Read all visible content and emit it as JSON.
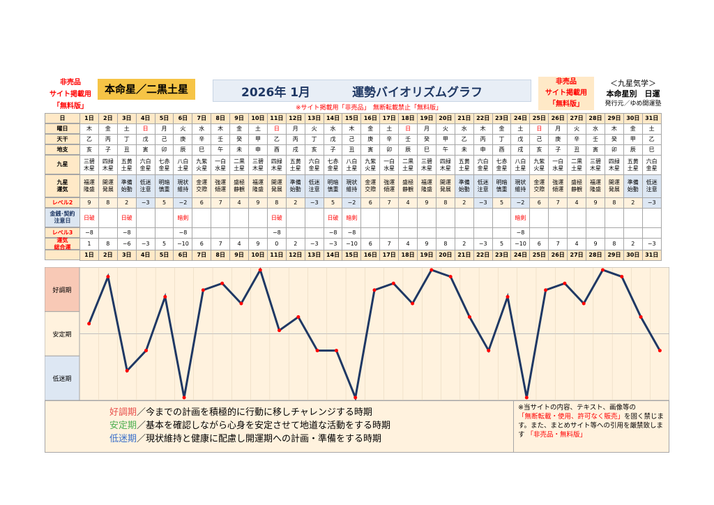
{
  "header": {
    "nonsale_left": [
      "非売品",
      "サイト掲載用",
      "「無料版」"
    ],
    "honmei": "本命星／二黒土星",
    "year_month": "2026年 1月",
    "title": "運勢バイオリズムグラフ",
    "nonsale_right": [
      "非売品",
      "サイト掲載用",
      "「無料版」"
    ],
    "kyusei": [
      "＜九星気学＞",
      "本命星別　日運",
      "発行元／ゆめ開運塾"
    ],
    "red_notice": "※サイト掲載用「非売品」　無断転載禁止「無料版」"
  },
  "row_labels": {
    "day": "日",
    "weekday": "曜日",
    "tenkan": "天干",
    "chishi": "地支",
    "kyusei": "九星",
    "kyusei_unki": "九星\n運気",
    "level2": "レベル2",
    "kinsen": "金銭･契約\n注意日",
    "level3": "レベル3",
    "unki_total": "運気\n総合運"
  },
  "days": [
    "1日",
    "2日",
    "3日",
    "4日",
    "5日",
    "6日",
    "7日",
    "8日",
    "9日",
    "10日",
    "11日",
    "12日",
    "13日",
    "14日",
    "15日",
    "16日",
    "17日",
    "18日",
    "19日",
    "20日",
    "21日",
    "22日",
    "23日",
    "24日",
    "25日",
    "26日",
    "27日",
    "28日",
    "29日",
    "30日",
    "31日"
  ],
  "weekday": [
    "木",
    "金",
    "土",
    "日",
    "月",
    "火",
    "水",
    "木",
    "金",
    "土",
    "日",
    "月",
    "火",
    "水",
    "木",
    "金",
    "土",
    "日",
    "月",
    "火",
    "水",
    "木",
    "金",
    "土",
    "日",
    "月",
    "火",
    "水",
    "木",
    "金",
    "土"
  ],
  "weekday_red": [
    3,
    10,
    17,
    24
  ],
  "tenkan": [
    "乙",
    "丙",
    "丁",
    "戊",
    "己",
    "庚",
    "辛",
    "壬",
    "癸",
    "甲",
    "乙",
    "丙",
    "丁",
    "戊",
    "己",
    "庚",
    "辛",
    "壬",
    "癸",
    "甲",
    "乙",
    "丙",
    "丁",
    "戊",
    "己",
    "庚",
    "辛",
    "壬",
    "癸",
    "甲",
    "乙"
  ],
  "chishi": [
    "亥",
    "子",
    "丑",
    "寅",
    "卯",
    "辰",
    "巳",
    "午",
    "未",
    "申",
    "酉",
    "戌",
    "亥",
    "子",
    "丑",
    "寅",
    "卯",
    "辰",
    "巳",
    "午",
    "未",
    "申",
    "酉",
    "戌",
    "亥",
    "子",
    "丑",
    "寅",
    "卯",
    "辰",
    "巳"
  ],
  "kyusei": [
    [
      "三碧",
      "木星"
    ],
    [
      "四緑",
      "木星"
    ],
    [
      "五黄",
      "土星"
    ],
    [
      "六白",
      "金星"
    ],
    [
      "七赤",
      "金星"
    ],
    [
      "八白",
      "土星"
    ],
    [
      "九紫",
      "火星"
    ],
    [
      "一白",
      "水星"
    ],
    [
      "二黒",
      "土星"
    ],
    [
      "三碧",
      "木星"
    ],
    [
      "四緑",
      "木星"
    ],
    [
      "五黄",
      "土星"
    ],
    [
      "六白",
      "金星"
    ],
    [
      "七赤",
      "金星"
    ],
    [
      "八白",
      "土星"
    ],
    [
      "九紫",
      "火星"
    ],
    [
      "一白",
      "水星"
    ],
    [
      "二黒",
      "土星"
    ],
    [
      "三碧",
      "木星"
    ],
    [
      "四緑",
      "木星"
    ],
    [
      "五黄",
      "土星"
    ],
    [
      "六白",
      "金星"
    ],
    [
      "七赤",
      "金星"
    ],
    [
      "八白",
      "土星"
    ],
    [
      "九紫",
      "火星"
    ],
    [
      "一白",
      "水星"
    ],
    [
      "二黒",
      "土星"
    ],
    [
      "三碧",
      "木星"
    ],
    [
      "四緑",
      "木星"
    ],
    [
      "五黄",
      "土星"
    ],
    [
      "六白",
      "金星"
    ]
  ],
  "unki": [
    [
      "福運",
      "隆盛"
    ],
    [
      "開運",
      "発展"
    ],
    [
      "準備",
      "始動"
    ],
    [
      "低迷",
      "注意"
    ],
    [
      "明暗",
      "慎重"
    ],
    [
      "現状",
      "維持"
    ],
    [
      "金運",
      "交際"
    ],
    [
      "強運",
      "傾運"
    ],
    [
      "盛極",
      "静観"
    ],
    [
      "福運",
      "隆盛"
    ],
    [
      "開運",
      "発展"
    ],
    [
      "準備",
      "始動"
    ],
    [
      "低迷",
      "注意"
    ],
    [
      "明暗",
      "慎重"
    ],
    [
      "現状",
      "維持"
    ],
    [
      "金運",
      "交際"
    ],
    [
      "強運",
      "傾運"
    ],
    [
      "盛極",
      "静観"
    ],
    [
      "福運",
      "隆盛"
    ],
    [
      "開運",
      "発展"
    ],
    [
      "準備",
      "始動"
    ],
    [
      "低迷",
      "注意"
    ],
    [
      "明暗",
      "慎重"
    ],
    [
      "現状",
      "維持"
    ],
    [
      "金運",
      "交際"
    ],
    [
      "強運",
      "傾運"
    ],
    [
      "盛極",
      "静観"
    ],
    [
      "福運",
      "隆盛"
    ],
    [
      "開運",
      "発展"
    ],
    [
      "準備",
      "始動"
    ],
    [
      "低迷",
      "注意"
    ]
  ],
  "level2": [
    "9",
    "8",
    "2",
    "−3",
    "5",
    "−2",
    "6",
    "7",
    "4",
    "9",
    "8",
    "2",
    "−3",
    "5",
    "−2",
    "6",
    "7",
    "4",
    "9",
    "8",
    "2",
    "−3",
    "5",
    "−2",
    "6",
    "7",
    "4",
    "9",
    "8",
    "2",
    "−3"
  ],
  "kinsen": [
    "日破",
    "",
    "日破",
    "",
    "",
    "暗剣",
    "",
    "",
    "",
    "",
    "日破",
    "",
    "",
    "日破",
    "暗剣",
    "",
    "",
    "",
    "",
    "",
    "",
    "",
    "",
    "暗剣",
    "",
    "",
    "",
    "",
    "",
    "",
    ""
  ],
  "level3": [
    "−8",
    "",
    "−8",
    "",
    "",
    "−8",
    "",
    "",
    "",
    "",
    "−8",
    "",
    "",
    "−8",
    "−8",
    "",
    "",
    "",
    "",
    "",
    "",
    "",
    "",
    "−8",
    "",
    "",
    "",
    "",
    "",
    "",
    ""
  ],
  "total": [
    "1",
    "8",
    "−6",
    "−3",
    "5",
    "−10",
    "6",
    "7",
    "4",
    "9",
    "0",
    "2",
    "−3",
    "−3",
    "−10",
    "6",
    "7",
    "4",
    "9",
    "8",
    "2",
    "−3",
    "5",
    "−10",
    "6",
    "7",
    "4",
    "9",
    "8",
    "2",
    "−3"
  ],
  "chart_data": {
    "type": "line",
    "x": [
      "1日",
      "2日",
      "3日",
      "4日",
      "5日",
      "6日",
      "7日",
      "8日",
      "9日",
      "10日",
      "11日",
      "12日",
      "13日",
      "14日",
      "15日",
      "16日",
      "17日",
      "18日",
      "19日",
      "20日",
      "21日",
      "22日",
      "23日",
      "24日",
      "25日",
      "26日",
      "27日",
      "28日",
      "29日",
      "30日",
      "31日"
    ],
    "values": [
      1,
      8,
      -6,
      -3,
      5,
      -10,
      6,
      7,
      4,
      9,
      0,
      2,
      -3,
      -3,
      -10,
      6,
      7,
      4,
      9,
      8,
      2,
      -3,
      5,
      -10,
      6,
      7,
      4,
      9,
      8,
      2,
      -3
    ],
    "ylim": [
      -10,
      9
    ],
    "bands": [
      "好調期",
      "安定期",
      "低迷期"
    ],
    "line_color": "#1f3864",
    "marker_color": "#ff0000"
  },
  "legend": {
    "items": [
      {
        "term": "好調期",
        "color": "#e8504c",
        "text": "／今までの計画を積極的に行動に移しチャレンジする時期"
      },
      {
        "term": "安定期",
        "color": "#4caf50",
        "text": "／基本を確認しながら心身を安定させて地道な活動をする時期"
      },
      {
        "term": "低迷期",
        "color": "#3a6fc9",
        "text": "／現状維持と健康に配慮し開運期への計画・準備をする時期"
      }
    ]
  },
  "notice": {
    "line1": "※当サイトの内容、テキスト、画像等の",
    "red": "「無断転載・使用、許可なく販売」",
    "line2": "を固く禁じます。また、まとめサイト等への引用を厳禁致します",
    "red2": "「非売品・無料版」"
  }
}
